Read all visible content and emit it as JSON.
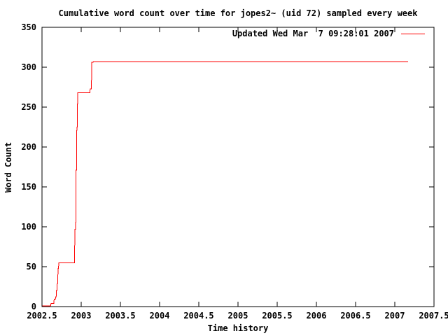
{
  "colors": {
    "background": "#ffffff",
    "axis": "#000000",
    "text": "#000000",
    "series": "#ff0000"
  },
  "chart_data": {
    "type": "line",
    "style": "steps",
    "title": "Cumulative word count over time for jopes2~ (uid 72) sampled every week",
    "xlabel": "Time history",
    "ylabel": "Word Count",
    "xlim": [
      2002.5,
      2007.5
    ],
    "ylim": [
      0,
      350
    ],
    "grid": false,
    "legend_position": "top-right-inside",
    "x_ticks": [
      2002.5,
      2003,
      2003.5,
      2004,
      2004.5,
      2005,
      2005.5,
      2006,
      2006.5,
      2007,
      2007.5
    ],
    "x_tick_labels": [
      "2002.5",
      "2003",
      "2003.5",
      "2004",
      "2004.5",
      "2005",
      "2005.5",
      "2006",
      "2006.5",
      "2007",
      "2007.5"
    ],
    "y_ticks": [
      0,
      50,
      100,
      150,
      200,
      250,
      300,
      350
    ],
    "y_tick_labels": [
      "0",
      "50",
      "100",
      "150",
      "200",
      "250",
      "300",
      "350"
    ],
    "series": [
      {
        "name": "Updated Wed Mar  7 09:28:01 2007",
        "color": "#ff0000",
        "points": [
          [
            2002.505,
            1
          ],
          [
            2002.61,
            1
          ],
          [
            2002.615,
            4
          ],
          [
            2002.65,
            4
          ],
          [
            2002.655,
            9
          ],
          [
            2002.67,
            9
          ],
          [
            2002.675,
            12
          ],
          [
            2002.68,
            12
          ],
          [
            2002.685,
            20
          ],
          [
            2002.69,
            20
          ],
          [
            2002.695,
            29
          ],
          [
            2002.7,
            29
          ],
          [
            2002.705,
            48
          ],
          [
            2002.71,
            48
          ],
          [
            2002.715,
            55
          ],
          [
            2002.915,
            55
          ],
          [
            2002.92,
            97
          ],
          [
            2002.93,
            97
          ],
          [
            2002.935,
            171
          ],
          [
            2002.94,
            171
          ],
          [
            2002.945,
            225
          ],
          [
            2002.95,
            225
          ],
          [
            2002.952,
            254
          ],
          [
            2002.955,
            254
          ],
          [
            2002.957,
            268
          ],
          [
            2003.11,
            268
          ],
          [
            2003.115,
            273
          ],
          [
            2003.13,
            273
          ],
          [
            2003.135,
            306
          ],
          [
            2003.15,
            306
          ],
          [
            2003.155,
            307
          ],
          [
            2007.17,
            307
          ]
        ]
      }
    ]
  }
}
